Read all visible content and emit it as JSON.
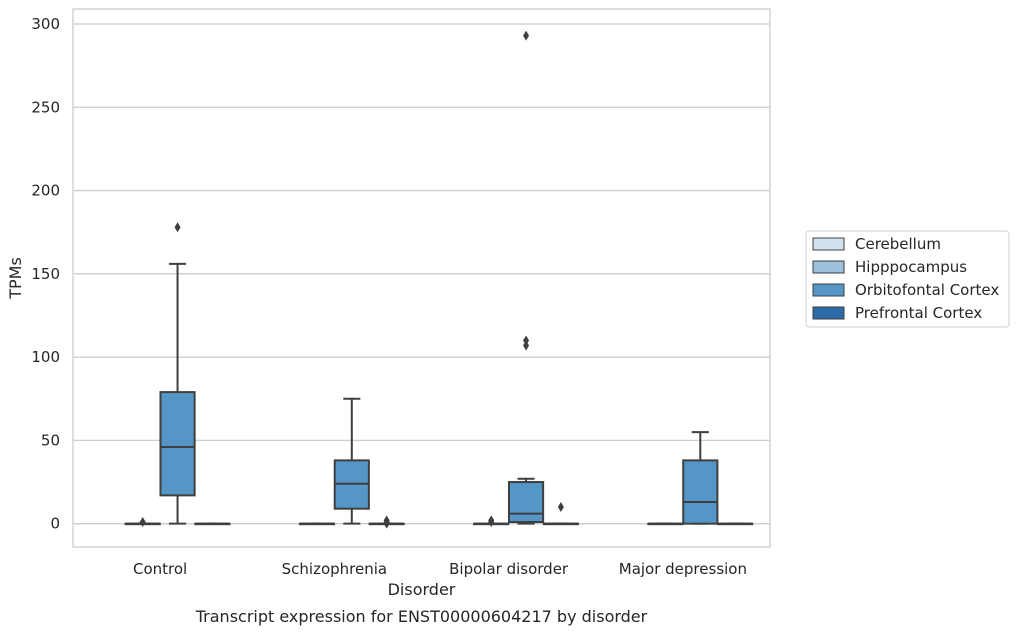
{
  "caption": "Transcript expression for ENST00000604217 by disorder",
  "chart_data": {
    "type": "box",
    "xlabel": "Disorder",
    "ylabel": "TPMs",
    "ylim": [
      -14,
      309
    ],
    "yticks": [
      0,
      50,
      100,
      150,
      200,
      250,
      300
    ],
    "ytick_labels": [
      "0",
      "50",
      "100",
      "150",
      "200",
      "250",
      "300"
    ],
    "grid": "horizontal",
    "legend_placement": "right",
    "categories": [
      "Control",
      "Schizophrenia",
      "Bipolar disorder",
      "Major depression"
    ],
    "series": [
      {
        "name": "Cerebellum",
        "color": "#d1e1f0",
        "boxes": [
          null,
          null,
          null,
          null
        ]
      },
      {
        "name": "Hipppocampus",
        "color": "#9dc2de",
        "boxes": [
          {
            "q1": 0,
            "median": 0,
            "q3": 0,
            "whislo": 0,
            "whishi": 0,
            "fliers": [
              1
            ]
          },
          {
            "q1": 0,
            "median": 0,
            "q3": 0,
            "whislo": 0,
            "whishi": 0,
            "fliers": []
          },
          {
            "q1": 0,
            "median": 0,
            "q3": 0,
            "whislo": 0,
            "whishi": 0,
            "fliers": [
              1,
              2
            ]
          },
          {
            "q1": 0,
            "median": 0,
            "q3": 0,
            "whislo": 0,
            "whishi": 0,
            "fliers": []
          }
        ]
      },
      {
        "name": "Orbitofontal Cortex",
        "color": "#5496c5",
        "boxes": [
          {
            "q1": 17,
            "median": 46,
            "q3": 79,
            "whislo": 0,
            "whishi": 156,
            "fliers": [
              178
            ]
          },
          {
            "q1": 9,
            "median": 24,
            "q3": 38,
            "whislo": 0,
            "whishi": 75,
            "fliers": []
          },
          {
            "q1": 1,
            "median": 6,
            "q3": 25,
            "whislo": 0,
            "whishi": 27,
            "fliers": [
              107,
              110,
              293
            ]
          },
          {
            "q1": 0,
            "median": 13,
            "q3": 38,
            "whislo": 0,
            "whishi": 55,
            "fliers": []
          }
        ]
      },
      {
        "name": "Prefrontal Cortex",
        "color": "#2c6aa8",
        "boxes": [
          {
            "q1": 0,
            "median": 0,
            "q3": 0,
            "whislo": 0,
            "whishi": 0,
            "fliers": []
          },
          {
            "q1": 0,
            "median": 0,
            "q3": 0,
            "whislo": 0,
            "whishi": 0,
            "fliers": [
              0,
              1,
              2
            ]
          },
          {
            "q1": 0,
            "median": 0,
            "q3": 0,
            "whislo": 0,
            "whishi": 0,
            "fliers": [
              10
            ]
          },
          {
            "q1": 0,
            "median": 0,
            "q3": 0,
            "whislo": 0,
            "whishi": 0,
            "fliers": []
          }
        ]
      }
    ]
  }
}
